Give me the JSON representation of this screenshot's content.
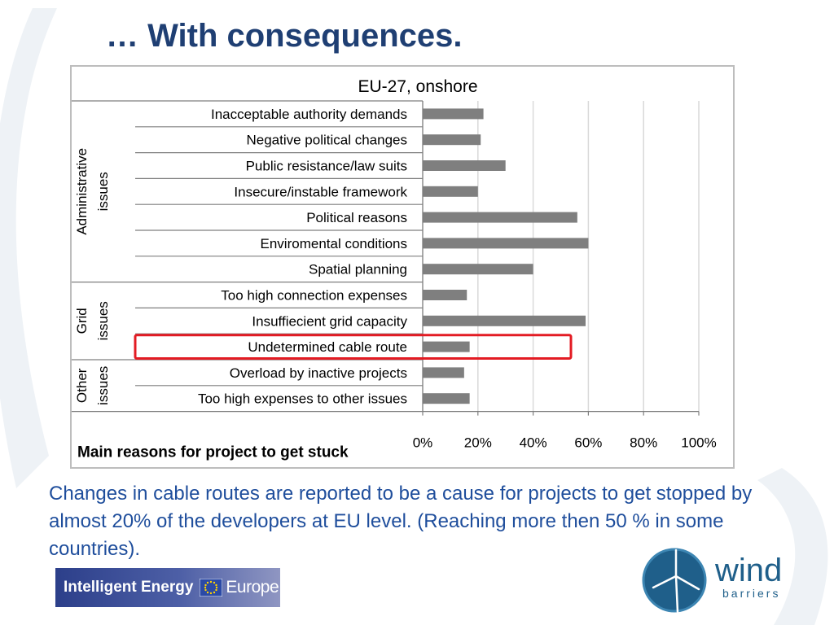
{
  "slide": {
    "title": "… With consequences.",
    "body": "Changes in cable routes are reported to be a cause for projects to get stopped by almost 20% of the developers at EU level. (Reaching more then 50 % in some countries)."
  },
  "logos": {
    "iee_left": "Intelligent Energy",
    "iee_right": "Europe",
    "wind_top": "wind",
    "wind_bottom": "barriers"
  },
  "colors": {
    "title": "#1f3f73",
    "body_text": "#1f4e9c",
    "bar": "#7f7f7f",
    "highlight_box": "#e31b23"
  },
  "chart_data": {
    "type": "bar",
    "orientation": "horizontal",
    "title": "EU-27, onshore",
    "footer_label": "Main reasons for project to get stuck",
    "categories": [
      "Inacceptable authority demands",
      "Negative political changes",
      "Public resistance/law suits",
      "Insecure/instable framework",
      "Political reasons",
      "Enviromental conditions",
      "Spatial planning",
      "Too high connection expenses",
      "Insuffiecient grid capacity",
      "Undetermined cable route",
      "Overload by inactive projects",
      "Too high expenses to other issues"
    ],
    "values": [
      22,
      21,
      30,
      20,
      56,
      60,
      40,
      16,
      59,
      17,
      15,
      17
    ],
    "groups": [
      {
        "label_lines": [
          "Administrative",
          "issues"
        ],
        "start": 0,
        "end": 6
      },
      {
        "label_lines": [
          "Grid",
          "issues"
        ],
        "start": 7,
        "end": 9
      },
      {
        "label_lines": [
          "Other",
          "issues"
        ],
        "start": 10,
        "end": 11
      }
    ],
    "highlighted_category": "Undetermined cable route",
    "xlim": [
      0,
      100
    ],
    "x_ticks": [
      0,
      20,
      40,
      60,
      80,
      100
    ],
    "x_tick_labels": [
      "0%",
      "20%",
      "40%",
      "60%",
      "80%",
      "100%"
    ],
    "grid": true
  }
}
